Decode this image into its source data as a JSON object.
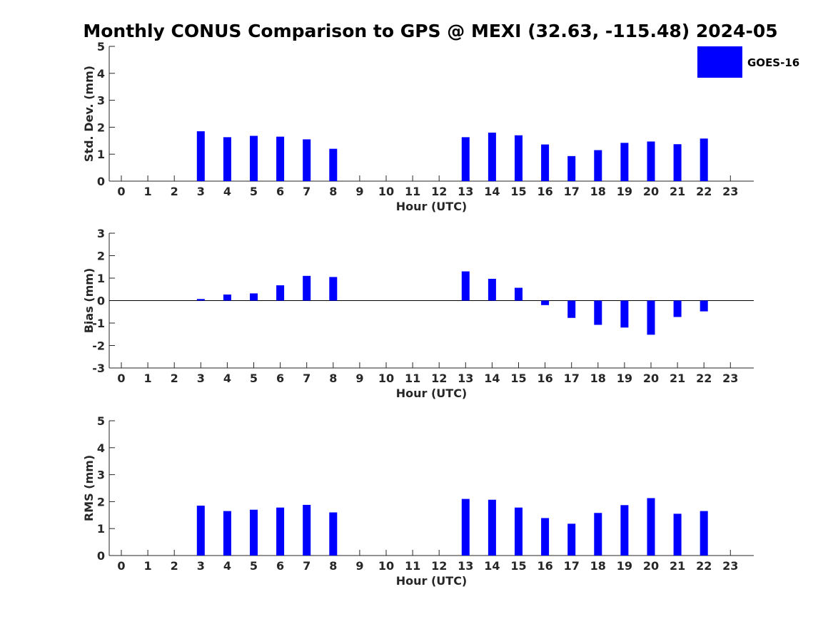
{
  "chart_data": [
    {
      "type": "bar",
      "title": "Monthly CONUS Comparison to GPS @ MEXI (32.63, -115.48) 2024-05",
      "xlabel": "Hour (UTC)",
      "ylabel": "Std. Dev. (mm)",
      "ylim": [
        0,
        5
      ],
      "yticks": [
        0,
        1,
        2,
        3,
        4,
        5
      ],
      "legend": {
        "entries": [
          "GOES-16"
        ],
        "placement": "top-right"
      },
      "categories": [
        "0",
        "1",
        "2",
        "3",
        "4",
        "5",
        "6",
        "7",
        "8",
        "9",
        "10",
        "11",
        "12",
        "13",
        "14",
        "15",
        "16",
        "17",
        "18",
        "19",
        "20",
        "21",
        "22",
        "23"
      ],
      "series": [
        {
          "name": "GOES-16",
          "color": "#0000ff",
          "values": [
            null,
            null,
            null,
            1.85,
            1.63,
            1.68,
            1.65,
            1.55,
            1.2,
            null,
            null,
            null,
            null,
            1.63,
            1.8,
            1.7,
            1.36,
            0.93,
            1.15,
            1.42,
            1.47,
            1.37,
            1.58,
            null
          ]
        }
      ]
    },
    {
      "type": "bar",
      "xlabel": "Hour (UTC)",
      "ylabel": "Bias (mm)",
      "ylim": [
        -3,
        3
      ],
      "yticks": [
        -3,
        -2,
        -1,
        0,
        1,
        2,
        3
      ],
      "categories": [
        "0",
        "1",
        "2",
        "3",
        "4",
        "5",
        "6",
        "7",
        "8",
        "9",
        "10",
        "11",
        "12",
        "13",
        "14",
        "15",
        "16",
        "17",
        "18",
        "19",
        "20",
        "21",
        "22",
        "23"
      ],
      "series": [
        {
          "color": "#0000ff",
          "values": [
            null,
            null,
            null,
            0.07,
            0.27,
            0.32,
            0.68,
            1.1,
            1.05,
            null,
            null,
            null,
            null,
            1.3,
            0.97,
            0.57,
            -0.2,
            -0.77,
            -1.08,
            -1.2,
            -1.52,
            -0.73,
            -0.48,
            null
          ]
        }
      ]
    },
    {
      "type": "bar",
      "xlabel": "Hour (UTC)",
      "ylabel": "RMS (mm)",
      "ylim": [
        0,
        5
      ],
      "yticks": [
        0,
        1,
        2,
        3,
        4,
        5
      ],
      "categories": [
        "0",
        "1",
        "2",
        "3",
        "4",
        "5",
        "6",
        "7",
        "8",
        "9",
        "10",
        "11",
        "12",
        "13",
        "14",
        "15",
        "16",
        "17",
        "18",
        "19",
        "20",
        "21",
        "22",
        "23"
      ],
      "series": [
        {
          "color": "#0000ff",
          "values": [
            null,
            null,
            null,
            1.85,
            1.65,
            1.7,
            1.78,
            1.88,
            1.6,
            null,
            null,
            null,
            null,
            2.1,
            2.07,
            1.78,
            1.39,
            1.18,
            1.58,
            1.87,
            2.13,
            1.55,
            1.65,
            null
          ]
        }
      ]
    }
  ]
}
